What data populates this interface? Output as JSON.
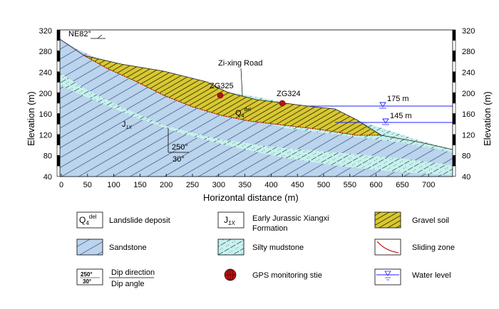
{
  "axes": {
    "x_label": "Horizontal distance (m)",
    "y_label_left": "Elevation (m)",
    "y_label_right": "Elevation (m)",
    "x_ticks": [
      "0",
      "50",
      "100",
      "150",
      "200",
      "250",
      "300",
      "350",
      "400",
      "450",
      "500",
      "550",
      "600",
      "650",
      "700"
    ],
    "y_ticks": [
      "40",
      "80",
      "120",
      "160",
      "200",
      "240",
      "280",
      "320"
    ]
  },
  "annotations": {
    "orientation": "NE82°",
    "road": "Zi-xing Road",
    "gps1": "ZG325",
    "gps2": "ZG324",
    "deposit_label": "Q",
    "deposit_sub": "4",
    "deposit_sup": "del",
    "formation_label": "J",
    "formation_sub": "1X",
    "dip_direction": "250°",
    "dip_angle": "30°",
    "water_level_1": "175 m",
    "water_level_2": "145 m"
  },
  "legend": {
    "landslide_deposit": "Landslide deposit",
    "formation_line1": "Early Jurassic Xiangxi",
    "formation_line2": "Formation",
    "gravel_soil": "Gravel soil",
    "sandstone": "Sandstone",
    "silty_mudstone": "Silty mudstone",
    "sliding_zone": "Sliding zone",
    "dip_direction": "Dip direction",
    "dip_angle": "Dip angle",
    "gps_site": "GPS monitoring stie",
    "water_level": "Water level",
    "sym_dip_dir": "250°",
    "sym_dip_ang": "30°"
  },
  "colors": {
    "sandstone": "#bcd4ec",
    "mudstone": "#c8f0ec",
    "gravel": "#d8c832",
    "sliding": "#c00000",
    "water": "#2020ff",
    "gps": "#c01010"
  }
}
